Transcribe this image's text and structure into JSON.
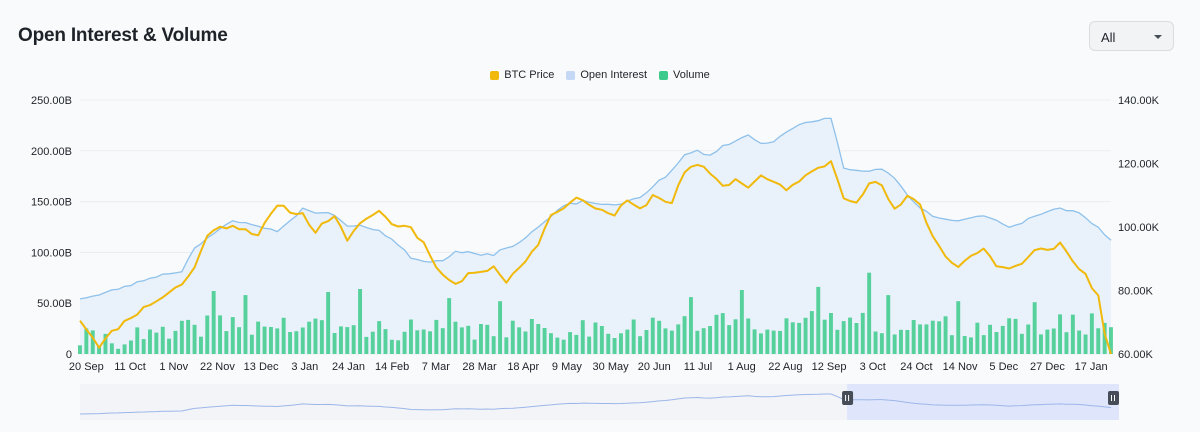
{
  "title": "Open Interest & Volume",
  "range_select": {
    "value": "All"
  },
  "colors": {
    "btc_price": "#f0b90b",
    "open_interest": "#8ec1eb",
    "open_interest_fill": "#e9f1fb",
    "volume": "#3ccb8a",
    "grid": "#ebedf0",
    "navigator_fill": "#dfe6fb",
    "navigator_line": "#9db6ea"
  },
  "chart_data": {
    "type": "line",
    "title": "Open Interest & Volume",
    "legend": {
      "position": "top-center",
      "entries": [
        "BTC Price",
        "Open Interest",
        "Volume"
      ]
    },
    "x_ticks": [
      "20 Sep",
      "11 Oct",
      "1 Nov",
      "22 Nov",
      "13 Dec",
      "3 Jan",
      "24 Jan",
      "14 Feb",
      "7 Mar",
      "28 Mar",
      "18 Apr",
      "9 May",
      "30 May",
      "20 Jun",
      "11 Jul",
      "1 Aug",
      "22 Aug",
      "12 Sep",
      "3 Oct",
      "24 Oct",
      "14 Nov",
      "5 Dec",
      "27 Dec",
      "17 Jan"
    ],
    "y_left": {
      "ticks": [
        "0",
        "50.00B",
        "100.00B",
        "150.00B",
        "200.00B",
        "250.00B"
      ],
      "range": [
        0,
        250000000000
      ]
    },
    "y_right": {
      "ticks": [
        "60.00K",
        "80.00K",
        "100.00K",
        "120.00K",
        "140.00K"
      ],
      "range": [
        60000,
        140000
      ]
    },
    "grid": true,
    "series": [
      {
        "name": "BTC Price",
        "axis": "right",
        "type": "line",
        "keypoints": [
          [
            0,
            71000
          ],
          [
            3,
            63000
          ],
          [
            8,
            72000
          ],
          [
            16,
            82000
          ],
          [
            18,
            87000
          ],
          [
            20,
            98000
          ],
          [
            24,
            101000
          ],
          [
            28,
            98000
          ],
          [
            31,
            106000
          ],
          [
            35,
            104000
          ],
          [
            37,
            99000
          ],
          [
            40,
            104000
          ],
          [
            42,
            95000
          ],
          [
            45,
            103000
          ],
          [
            47,
            105000
          ],
          [
            49,
            101000
          ],
          [
            52,
            100000
          ],
          [
            54,
            95000
          ],
          [
            57,
            85000
          ],
          [
            59,
            82000
          ],
          [
            62,
            86000
          ],
          [
            65,
            88000
          ],
          [
            67,
            83000
          ],
          [
            69,
            87000
          ],
          [
            72,
            95000
          ],
          [
            74,
            104000
          ],
          [
            76,
            107000
          ],
          [
            79,
            109000
          ],
          [
            82,
            105000
          ],
          [
            84,
            104000
          ],
          [
            86,
            108000
          ],
          [
            88,
            105000
          ],
          [
            90,
            110000
          ],
          [
            93,
            108000
          ],
          [
            95,
            117000
          ],
          [
            97,
            119000
          ],
          [
            99,
            117000
          ],
          [
            101,
            113000
          ],
          [
            103,
            115000
          ],
          [
            105,
            113000
          ],
          [
            107,
            116000
          ],
          [
            109,
            114000
          ],
          [
            111,
            111000
          ],
          [
            113,
            115000
          ],
          [
            116,
            118000
          ],
          [
            118,
            121000
          ],
          [
            120,
            110000
          ],
          [
            122,
            109000
          ],
          [
            124,
            114000
          ],
          [
            126,
            113000
          ],
          [
            128,
            105000
          ],
          [
            130,
            109000
          ],
          [
            132,
            107000
          ],
          [
            134,
            97000
          ],
          [
            136,
            91000
          ],
          [
            138,
            88000
          ],
          [
            140,
            91000
          ],
          [
            142,
            93000
          ],
          [
            144,
            88000
          ],
          [
            146,
            87000
          ],
          [
            148,
            88000
          ],
          [
            150,
            92000
          ],
          [
            152,
            93000
          ],
          [
            154,
            95000
          ],
          [
            156,
            89000
          ],
          [
            158,
            85000
          ],
          [
            160,
            78000
          ],
          [
            161,
            67000
          ],
          [
            162,
            60000
          ]
        ],
        "seed": 11,
        "jitter": 1500
      },
      {
        "name": "Open Interest",
        "axis": "left",
        "type": "area",
        "keypoints": [
          [
            0,
            55000000000
          ],
          [
            3,
            58000000000
          ],
          [
            8,
            68000000000
          ],
          [
            12,
            77000000000
          ],
          [
            16,
            82000000000
          ],
          [
            18,
            105000000000
          ],
          [
            20,
            115000000000
          ],
          [
            24,
            130000000000
          ],
          [
            28,
            127000000000
          ],
          [
            31,
            120000000000
          ],
          [
            35,
            143000000000
          ],
          [
            37,
            140000000000
          ],
          [
            40,
            137000000000
          ],
          [
            42,
            126000000000
          ],
          [
            45,
            125000000000
          ],
          [
            47,
            122000000000
          ],
          [
            49,
            113000000000
          ],
          [
            52,
            95000000000
          ],
          [
            54,
            92000000000
          ],
          [
            57,
            92000000000
          ],
          [
            59,
            102000000000
          ],
          [
            62,
            100000000000
          ],
          [
            65,
            97000000000
          ],
          [
            67,
            105000000000
          ],
          [
            69,
            110000000000
          ],
          [
            72,
            125000000000
          ],
          [
            74,
            135000000000
          ],
          [
            76,
            145000000000
          ],
          [
            79,
            150000000000
          ],
          [
            82,
            148000000000
          ],
          [
            84,
            145000000000
          ],
          [
            86,
            150000000000
          ],
          [
            88,
            155000000000
          ],
          [
            90,
            165000000000
          ],
          [
            93,
            180000000000
          ],
          [
            95,
            195000000000
          ],
          [
            97,
            200000000000
          ],
          [
            99,
            195000000000
          ],
          [
            101,
            205000000000
          ],
          [
            103,
            210000000000
          ],
          [
            105,
            215000000000
          ],
          [
            107,
            207000000000
          ],
          [
            109,
            210000000000
          ],
          [
            111,
            220000000000
          ],
          [
            113,
            225000000000
          ],
          [
            116,
            229000000000
          ],
          [
            118,
            233000000000
          ],
          [
            120,
            183000000000
          ],
          [
            122,
            180000000000
          ],
          [
            124,
            180000000000
          ],
          [
            126,
            183000000000
          ],
          [
            128,
            172000000000
          ],
          [
            130,
            155000000000
          ],
          [
            132,
            143000000000
          ],
          [
            134,
            135000000000
          ],
          [
            136,
            133000000000
          ],
          [
            138,
            130000000000
          ],
          [
            140,
            133000000000
          ],
          [
            142,
            137000000000
          ],
          [
            144,
            132000000000
          ],
          [
            146,
            125000000000
          ],
          [
            148,
            130000000000
          ],
          [
            150,
            137000000000
          ],
          [
            152,
            140000000000
          ],
          [
            154,
            143000000000
          ],
          [
            156,
            140000000000
          ],
          [
            158,
            135000000000
          ],
          [
            160,
            125000000000
          ],
          [
            162,
            112000000000
          ]
        ],
        "seed": 23,
        "jitter": 2200000000
      },
      {
        "name": "Volume",
        "axis": "left",
        "type": "bar",
        "keypoints": [
          [
            0,
            14000000000
          ],
          [
            14,
            18000000000
          ],
          [
            20,
            30000000000
          ],
          [
            40,
            26000000000
          ],
          [
            60,
            22000000000
          ],
          [
            74,
            24000000000
          ],
          [
            90,
            28000000000
          ],
          [
            120,
            33000000000
          ],
          [
            140,
            25000000000
          ],
          [
            162,
            30000000000
          ]
        ],
        "seed": 41,
        "jitter": 11000000000,
        "spikes": [
          [
            21,
            62000000000
          ],
          [
            26,
            58000000000
          ],
          [
            39,
            61000000000
          ],
          [
            44,
            64000000000
          ],
          [
            58,
            55000000000
          ],
          [
            66,
            52000000000
          ],
          [
            96,
            56000000000
          ],
          [
            104,
            63000000000
          ],
          [
            116,
            66000000000
          ],
          [
            124,
            80000000000
          ],
          [
            127,
            58000000000
          ],
          [
            138,
            52000000000
          ],
          [
            150,
            51000000000
          ]
        ]
      }
    ]
  }
}
